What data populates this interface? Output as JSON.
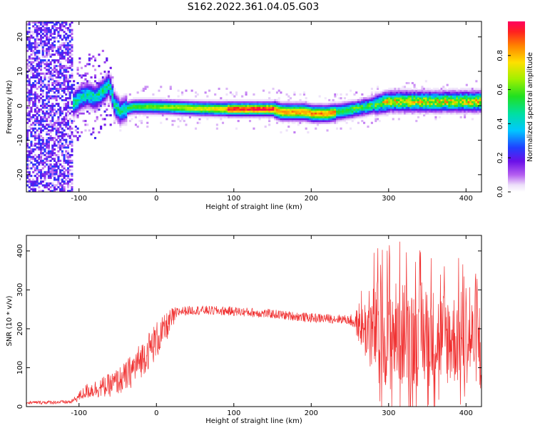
{
  "title": "S162.2022.361.04.05.G03",
  "chart_data": [
    {
      "type": "heatmap",
      "xlabel": "Height of straight line (km)",
      "ylabel": "Frequency (Hz)",
      "xlim": [
        -168,
        420
      ],
      "ylim": [
        -25,
        24.5
      ],
      "xticks": [
        -100,
        0,
        100,
        200,
        300,
        400
      ],
      "yticks": [
        -20,
        -10,
        0,
        10,
        20
      ],
      "colorbar": {
        "label": "Normalized spectral amplitude",
        "range": [
          0,
          1
        ],
        "ticks": [
          0.0,
          0.2,
          0.4,
          0.6,
          0.8
        ],
        "tick_labels": [
          "0.0",
          "0.2",
          "0.4",
          "0.6",
          "0.8"
        ],
        "colormap": "rainbow"
      },
      "ridge": {
        "x": [
          -168,
          -110,
          -100,
          -90,
          -80,
          -70,
          -62,
          -55,
          -48,
          -40,
          -30,
          -20,
          0,
          50,
          90,
          150,
          160,
          190,
          200,
          220,
          260,
          280,
          300,
          350,
          420
        ],
        "y": [
          0,
          0,
          2,
          3,
          2,
          4,
          6,
          0,
          -2,
          -1,
          -0.5,
          -0.5,
          -0.5,
          -1,
          -1.2,
          -1.2,
          -2,
          -2,
          -2.5,
          -2.5,
          -1,
          0,
          1,
          1,
          1
        ]
      },
      "ridge_peak_range": [
        90,
        150
      ]
    },
    {
      "type": "line",
      "xlabel": "Height of straight line (km)",
      "ylabel": "SNR (10 * v/v)",
      "xlim": [
        -168,
        420
      ],
      "ylim": [
        0,
        440
      ],
      "xticks": [
        -100,
        0,
        100,
        200,
        300,
        400
      ],
      "yticks": [
        0,
        100,
        200,
        300,
        400
      ],
      "color": "#f03030",
      "envelope": {
        "x": [
          -168,
          -110,
          -90,
          -60,
          -40,
          -20,
          0,
          10,
          20,
          30,
          50,
          100,
          150,
          200,
          240,
          255,
          270,
          300,
          350,
          420
        ],
        "y": [
          10,
          12,
          40,
          55,
          75,
          120,
          170,
          195,
          225,
          245,
          248,
          245,
          238,
          228,
          225,
          220,
          200,
          190,
          180,
          170
        ]
      },
      "noise_amplitude": {
        "x": [
          -168,
          -110,
          -90,
          -60,
          -30,
          0,
          20,
          30,
          250,
          260,
          280,
          300,
          350,
          420
        ],
        "y": [
          4,
          5,
          20,
          30,
          45,
          50,
          30,
          12,
          12,
          40,
          120,
          140,
          130,
          110
        ]
      }
    }
  ]
}
